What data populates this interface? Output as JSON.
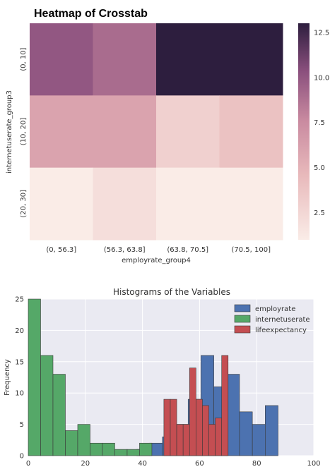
{
  "colors": {
    "employrate": "#4c72b0",
    "internetuserate": "#55a868",
    "lifeexpectancy": "#c44e52",
    "plot_bg": "#eaeaf2",
    "grid": "#ffffff",
    "heat_low": "#faece7",
    "heat_mid": "#d9a0b0",
    "heat_high": "#2d1e3e"
  },
  "chart_data": [
    {
      "type": "heatmap",
      "title": "Heatmap of Crosstab",
      "xlabel": "employrate_group4",
      "ylabel": "internetuserate_group3",
      "x_categories": [
        "(0, 56.3]",
        "(56.3, 63.8]",
        "(63.8, 70.5]",
        "(70.5, 100]"
      ],
      "y_categories": [
        "(0, 10]",
        "(10, 20]",
        "(20, 30]"
      ],
      "values": [
        [
          10,
          9,
          13,
          13
        ],
        [
          6,
          6,
          3,
          4
        ],
        [
          1,
          2,
          1,
          1
        ]
      ],
      "colorbar": {
        "range": [
          1,
          13
        ],
        "ticks": [
          2.5,
          5.0,
          7.5,
          10.0,
          12.5
        ],
        "tick_labels": [
          "2.5",
          "5.0",
          "7.5",
          "10.0",
          "12.5"
        ]
      }
    },
    {
      "type": "bar",
      "subtype": "histogram",
      "title": "Histograms of the Variables",
      "xlabel": "",
      "ylabel": "Frequency",
      "xlim": [
        0,
        100
      ],
      "ylim": [
        0,
        25
      ],
      "xticks": [
        0,
        20,
        40,
        60,
        80,
        100
      ],
      "yticks": [
        0,
        5,
        10,
        15,
        20,
        25
      ],
      "grid": true,
      "legend_position": "top-right",
      "series": [
        {
          "name": "employrate",
          "color_key": "employrate",
          "bin_start": 38,
          "bin_width": 4.5,
          "values": [
            1,
            2,
            3,
            5,
            9,
            16,
            11,
            13,
            7,
            5,
            8
          ]
        },
        {
          "name": "internetuserate",
          "color_key": "internetuserate",
          "bin_start": 0,
          "bin_width": 4.33,
          "values": [
            25,
            16,
            13,
            4,
            5,
            2,
            2,
            1,
            1,
            2
          ]
        },
        {
          "name": "lifeexpectancy",
          "color_key": "lifeexpectancy",
          "bin_start": 47.5,
          "bin_width": 2.25,
          "values": [
            9,
            9,
            5,
            5,
            14,
            9,
            8,
            5,
            6,
            16
          ]
        }
      ]
    }
  ]
}
